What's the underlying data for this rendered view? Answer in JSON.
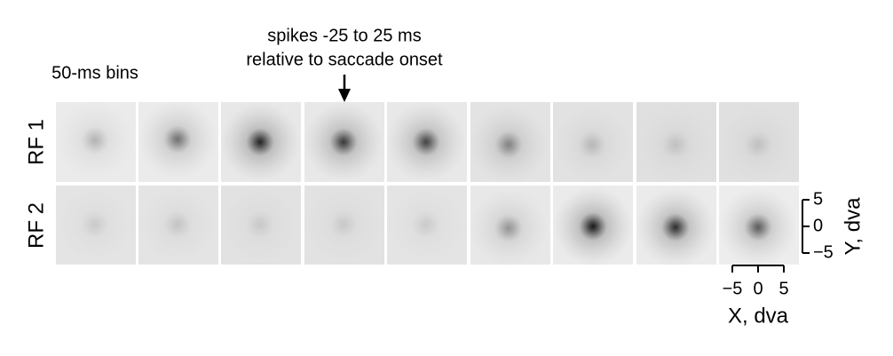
{
  "labels": {
    "bins": "50-ms bins",
    "annotation": [
      "spikes -25 to 25 ms",
      "relative to saccade onset"
    ],
    "rows": [
      "RF 1",
      "RF 2"
    ]
  },
  "scale": {
    "x_label": "X, dva",
    "y_label": "Y, dva",
    "xlim": [
      -5,
      5
    ],
    "ylim": [
      -5,
      5
    ],
    "xticks": [
      {
        "value": -5,
        "label": "−5"
      },
      0,
      5
    ],
    "yticks": [
      5,
      0,
      {
        "value": -5,
        "label": "−5"
      }
    ]
  }
}
